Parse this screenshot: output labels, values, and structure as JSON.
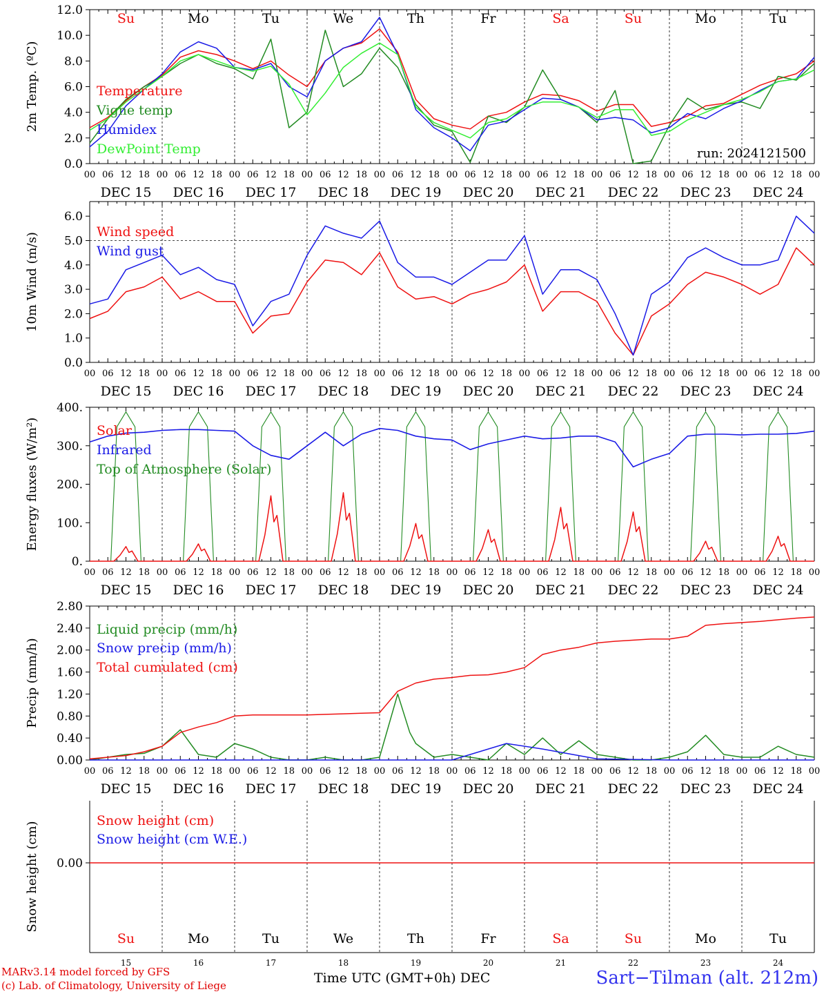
{
  "footer": {
    "credit_model": "MARv3.14 model forced by GFS",
    "credit_lab": "(c) Lab. of Climatology, University of Liege",
    "x_axis_title": "Time UTC (GMT+0h) DEC",
    "station": "Sart−Tilman (alt. 212m)"
  },
  "colors": {
    "red": "#ee1111",
    "blue": "#1a1ae6",
    "green": "#228b22",
    "lightgreen": "#33ee33",
    "weekend": "#ee1111",
    "weekday": "#000000"
  },
  "chart_data": [
    {
      "id": "temperature",
      "type": "line",
      "ylabel": "2m Temp. (ºC)",
      "ylim": [
        0,
        12
      ],
      "yticks": [
        "0.0",
        "2.0",
        "4.0",
        "6.0",
        "8.0",
        "10.0",
        "12.0"
      ],
      "annotation": "run: 2024121500",
      "day_labels": [
        "Su",
        "Mo",
        "Tu",
        "We",
        "Th",
        "Fr",
        "Sa",
        "Su",
        "Mo",
        "Tu"
      ],
      "date_labels": [
        "DEC 15",
        "DEC 16",
        "DEC 17",
        "DEC 18",
        "DEC 19",
        "DEC 20",
        "DEC 21",
        "DEC 22",
        "DEC 23",
        "DEC 24"
      ],
      "hour_ticks": [
        "00",
        "06",
        "12",
        "18"
      ],
      "x_unit": "hours since 2024-12-15 00 UTC",
      "series": [
        {
          "name": "Temperature",
          "color": "red",
          "x": [
            0,
            6,
            12,
            18,
            24,
            30,
            36,
            42,
            48,
            54,
            60,
            66,
            72,
            78,
            84,
            90,
            96,
            102,
            108,
            114,
            120,
            126,
            132,
            138,
            144,
            150,
            156,
            162,
            168,
            174,
            180,
            186,
            192,
            198,
            204,
            210,
            216,
            222,
            228,
            234,
            240
          ],
          "y": [
            2.8,
            3.6,
            4.9,
            6.0,
            6.9,
            8.3,
            8.8,
            8.5,
            8.0,
            7.4,
            8.0,
            6.9,
            6.0,
            8.0,
            9.0,
            9.4,
            10.5,
            8.7,
            5.0,
            3.5,
            3.0,
            2.7,
            3.7,
            4.0,
            4.8,
            5.4,
            5.3,
            4.9,
            4.1,
            4.6,
            4.6,
            2.9,
            3.2,
            3.7,
            4.5,
            4.7,
            5.4,
            6.1,
            6.6,
            7.0,
            8.0
          ]
        },
        {
          "name": "Vigne temp",
          "color": "green",
          "x": [
            0,
            6,
            12,
            18,
            24,
            30,
            36,
            42,
            48,
            54,
            60,
            66,
            72,
            78,
            84,
            90,
            96,
            102,
            108,
            114,
            120,
            126,
            132,
            138,
            144,
            150,
            156,
            162,
            168,
            174,
            180,
            186,
            192,
            198,
            204,
            210,
            216,
            222,
            228,
            234,
            240
          ],
          "y": [
            1.6,
            3.5,
            5.0,
            6.0,
            6.8,
            7.8,
            8.5,
            7.8,
            7.4,
            6.6,
            9.7,
            2.8,
            4.0,
            10.4,
            6.0,
            7.0,
            9.0,
            7.5,
            4.6,
            3.0,
            2.5,
            0.1,
            3.7,
            3.2,
            4.4,
            7.3,
            5.0,
            4.4,
            3.2,
            5.7,
            0.0,
            0.2,
            3.0,
            5.1,
            4.2,
            4.6,
            4.8,
            4.3,
            6.8,
            6.5,
            7.8
          ]
        },
        {
          "name": "Humidex",
          "color": "blue",
          "x": [
            0,
            6,
            12,
            18,
            24,
            30,
            36,
            42,
            48,
            54,
            60,
            66,
            72,
            78,
            84,
            90,
            96,
            102,
            108,
            114,
            120,
            126,
            132,
            138,
            144,
            150,
            156,
            162,
            168,
            174,
            180,
            186,
            192,
            198,
            204,
            210,
            216,
            222,
            228,
            234,
            240
          ],
          "y": [
            1.3,
            2.5,
            4.5,
            5.8,
            7.0,
            8.7,
            9.5,
            9.0,
            7.5,
            7.3,
            7.8,
            6.0,
            5.2,
            8.0,
            9.0,
            9.5,
            11.4,
            8.5,
            4.2,
            2.8,
            2.0,
            1.0,
            3.0,
            3.3,
            4.2,
            5.1,
            5.0,
            4.4,
            3.4,
            3.6,
            3.4,
            2.4,
            2.8,
            3.9,
            3.5,
            4.3,
            4.9,
            5.7,
            6.4,
            6.6,
            8.3
          ]
        },
        {
          "name": "DewPoint Temp",
          "color": "lightgreen",
          "x": [
            0,
            6,
            12,
            18,
            24,
            30,
            36,
            42,
            48,
            54,
            60,
            66,
            72,
            78,
            84,
            90,
            96,
            102,
            108,
            114,
            120,
            126,
            132,
            138,
            144,
            150,
            156,
            162,
            168,
            174,
            180,
            186,
            192,
            198,
            204,
            210,
            216,
            222,
            228,
            234,
            240
          ],
          "y": [
            2.6,
            3.5,
            4.8,
            5.8,
            6.8,
            8.0,
            8.5,
            8.0,
            7.5,
            7.2,
            7.6,
            6.2,
            3.8,
            5.5,
            7.5,
            8.6,
            9.4,
            8.5,
            4.4,
            3.2,
            2.6,
            2.0,
            3.2,
            3.5,
            4.4,
            4.8,
            4.8,
            4.4,
            3.6,
            4.2,
            4.2,
            2.2,
            2.5,
            3.4,
            4.0,
            4.6,
            5.0,
            5.6,
            6.4,
            6.6,
            7.3
          ]
        }
      ]
    },
    {
      "id": "wind",
      "type": "line",
      "ylabel": "10m Wind (m/s)",
      "ylim": [
        0,
        6.6
      ],
      "yticks": [
        "0.0",
        "1.0",
        "2.0",
        "3.0",
        "4.0",
        "5.0",
        "6.0"
      ],
      "ref_line": 5.0,
      "date_labels": [
        "DEC 15",
        "DEC 16",
        "DEC 17",
        "DEC 18",
        "DEC 19",
        "DEC 20",
        "DEC 21",
        "DEC 22",
        "DEC 23",
        "DEC 24"
      ],
      "hour_ticks": [
        "00",
        "06",
        "12",
        "18"
      ],
      "series": [
        {
          "name": "Wind speed",
          "color": "red",
          "x": [
            0,
            6,
            12,
            18,
            24,
            30,
            36,
            42,
            48,
            54,
            60,
            66,
            72,
            78,
            84,
            90,
            96,
            102,
            108,
            114,
            120,
            126,
            132,
            138,
            144,
            150,
            156,
            162,
            168,
            174,
            180,
            186,
            192,
            198,
            204,
            210,
            216,
            222,
            228,
            234,
            240
          ],
          "y": [
            1.8,
            2.1,
            2.9,
            3.1,
            3.5,
            2.6,
            2.9,
            2.5,
            2.5,
            1.2,
            1.9,
            2.0,
            3.3,
            4.2,
            4.1,
            3.6,
            4.5,
            3.1,
            2.6,
            2.7,
            2.4,
            2.8,
            3.0,
            3.3,
            4.0,
            2.1,
            2.9,
            2.9,
            2.5,
            1.2,
            0.3,
            1.9,
            2.4,
            3.2,
            3.7,
            3.5,
            3.2,
            2.8,
            3.2,
            4.7,
            4.0
          ]
        },
        {
          "name": "Wind gust",
          "color": "blue",
          "x": [
            0,
            6,
            12,
            18,
            24,
            30,
            36,
            42,
            48,
            54,
            60,
            66,
            72,
            78,
            84,
            90,
            96,
            102,
            108,
            114,
            120,
            126,
            132,
            138,
            144,
            150,
            156,
            162,
            168,
            174,
            180,
            186,
            192,
            198,
            204,
            210,
            216,
            222,
            228,
            234,
            240
          ],
          "y": [
            2.4,
            2.6,
            3.8,
            4.1,
            4.4,
            3.6,
            3.9,
            3.4,
            3.2,
            1.5,
            2.5,
            2.8,
            4.4,
            5.6,
            5.3,
            5.1,
            5.8,
            4.1,
            3.5,
            3.5,
            3.2,
            3.7,
            4.2,
            4.2,
            5.2,
            2.8,
            3.8,
            3.8,
            3.4,
            2.0,
            0.3,
            2.8,
            3.3,
            4.3,
            4.7,
            4.3,
            4.0,
            4.0,
            4.2,
            6.0,
            5.3
          ]
        }
      ]
    },
    {
      "id": "energy",
      "type": "line",
      "ylabel": "Energy fluxes (W/m²)",
      "ylim": [
        0,
        400
      ],
      "yticks": [
        "0.",
        "100.",
        "200.",
        "300.",
        "400."
      ],
      "date_labels": [
        "DEC 15",
        "DEC 16",
        "DEC 17",
        "DEC 18",
        "DEC 19",
        "DEC 20",
        "DEC 21",
        "DEC 22",
        "DEC 23",
        "DEC 24"
      ],
      "hour_ticks": [
        "00",
        "06",
        "12",
        "18"
      ],
      "toa_peak": 388,
      "solar_peaks": [
        38,
        45,
        170,
        178,
        98,
        82,
        140,
        128,
        52,
        65
      ],
      "series": [
        {
          "name": "Solar",
          "color": "red"
        },
        {
          "name": "Infrared",
          "color": "blue",
          "x": [
            0,
            6,
            12,
            18,
            24,
            30,
            36,
            42,
            48,
            54,
            60,
            66,
            72,
            78,
            84,
            90,
            96,
            102,
            108,
            114,
            120,
            126,
            132,
            138,
            144,
            150,
            156,
            162,
            168,
            174,
            180,
            186,
            192,
            198,
            204,
            210,
            216,
            222,
            228,
            234,
            240
          ],
          "y": [
            310,
            325,
            333,
            335,
            340,
            342,
            342,
            340,
            338,
            300,
            275,
            265,
            300,
            335,
            300,
            330,
            345,
            340,
            325,
            318,
            315,
            290,
            305,
            315,
            325,
            318,
            320,
            325,
            325,
            310,
            245,
            265,
            280,
            325,
            330,
            330,
            328,
            330,
            330,
            332,
            338
          ]
        },
        {
          "name": "Top of Atmosphere (Solar)",
          "color": "green"
        }
      ]
    },
    {
      "id": "precip",
      "type": "line",
      "ylabel": "Precip (mm/h)",
      "ylim": [
        0,
        2.8
      ],
      "yticks": [
        "0.00",
        "0.40",
        "0.80",
        "1.20",
        "1.60",
        "2.00",
        "2.40",
        "2.80"
      ],
      "date_labels": [
        "DEC 15",
        "DEC 16",
        "DEC 17",
        "DEC 18",
        "DEC 19",
        "DEC 20",
        "DEC 21",
        "DEC 22",
        "DEC 23",
        "DEC 24"
      ],
      "hour_ticks": [
        "00",
        "06",
        "12",
        "18"
      ],
      "series": [
        {
          "name": "Liquid precip (mm/h)",
          "color": "green",
          "x": [
            0,
            6,
            12,
            18,
            24,
            30,
            36,
            42,
            48,
            54,
            60,
            66,
            72,
            78,
            84,
            90,
            96,
            102,
            106,
            108,
            114,
            120,
            126,
            132,
            138,
            144,
            150,
            156,
            162,
            168,
            174,
            180,
            186,
            192,
            198,
            204,
            210,
            216,
            222,
            228,
            234,
            240
          ],
          "y": [
            0,
            0.05,
            0.1,
            0.12,
            0.25,
            0.55,
            0.1,
            0.05,
            0.3,
            0.2,
            0.05,
            0,
            0,
            0.05,
            0,
            0,
            0.05,
            1.2,
            0.5,
            0.3,
            0.05,
            0.1,
            0.05,
            0,
            0.3,
            0.1,
            0.4,
            0.1,
            0.35,
            0.1,
            0.05,
            0,
            0,
            0.05,
            0.15,
            0.45,
            0.1,
            0.05,
            0.05,
            0.25,
            0.1,
            0.05
          ]
        },
        {
          "name": "Snow precip (mm/h)",
          "color": "blue",
          "x": [
            0,
            24,
            48,
            72,
            96,
            120,
            138,
            150,
            168,
            192,
            216,
            240
          ],
          "y": [
            0,
            0,
            0,
            0,
            0,
            0,
            0.3,
            0.2,
            0.02,
            0,
            0,
            0
          ]
        },
        {
          "name": "Total cumulated (cm)",
          "color": "red",
          "x": [
            0,
            6,
            12,
            18,
            24,
            30,
            36,
            42,
            48,
            54,
            60,
            66,
            72,
            78,
            84,
            90,
            96,
            102,
            108,
            114,
            120,
            126,
            132,
            138,
            144,
            150,
            156,
            162,
            168,
            174,
            180,
            186,
            192,
            198,
            204,
            210,
            216,
            222,
            228,
            234,
            240
          ],
          "y": [
            0.02,
            0.05,
            0.08,
            0.15,
            0.25,
            0.5,
            0.6,
            0.68,
            0.8,
            0.82,
            0.82,
            0.82,
            0.82,
            0.83,
            0.84,
            0.85,
            0.86,
            1.25,
            1.4,
            1.47,
            1.5,
            1.54,
            1.55,
            1.6,
            1.68,
            1.92,
            2.0,
            2.05,
            2.13,
            2.16,
            2.18,
            2.2,
            2.2,
            2.25,
            2.45,
            2.48,
            2.5,
            2.52,
            2.55,
            2.58,
            2.6
          ]
        }
      ]
    },
    {
      "id": "snow",
      "type": "line",
      "ylabel": "Snow height (cm)",
      "yticks": [
        "0.00"
      ],
      "day_labels": [
        "Su",
        "Mo",
        "Tu",
        "We",
        "Th",
        "Fr",
        "Sa",
        "Su",
        "Mo",
        "Tu"
      ],
      "day_numbers": [
        "15",
        "16",
        "17",
        "18",
        "19",
        "20",
        "21",
        "22",
        "23",
        "24"
      ],
      "series": [
        {
          "name": "Snow height (cm)",
          "color": "red",
          "x": [
            0,
            240
          ],
          "y": [
            0,
            0
          ]
        },
        {
          "name": "Snow height (cm W.E.)",
          "color": "blue"
        }
      ]
    }
  ]
}
